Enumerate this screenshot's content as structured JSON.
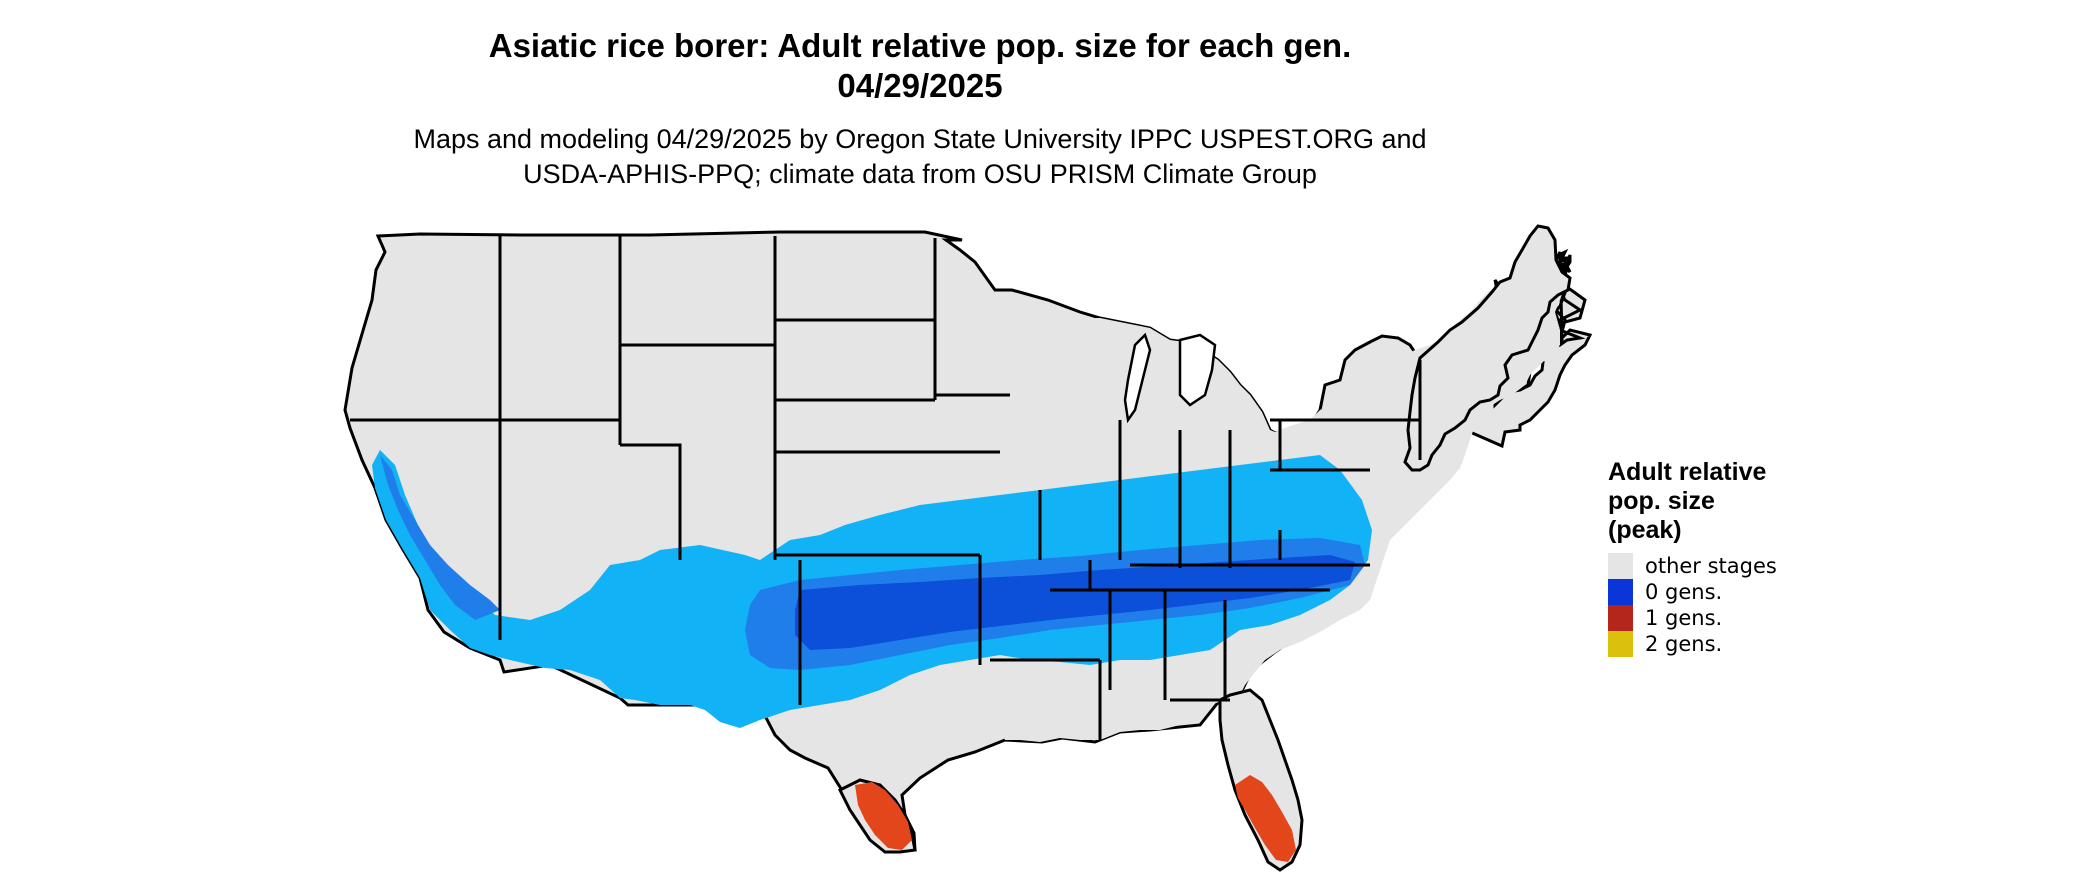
{
  "header": {
    "title_line1": "Asiatic rice borer: Adult relative pop. size for each gen.",
    "title_line2": "04/29/2025",
    "subtitle_line1": "Maps and modeling 04/29/2025 by Oregon State University IPPC USPEST.ORG and",
    "subtitle_line2": "USDA-APHIS-PPQ; climate data from OSU PRISM Climate Group"
  },
  "legend": {
    "title_line1": "Adult relative",
    "title_line2": "pop. size",
    "title_line3": "(peak)",
    "items": [
      {
        "label": "other stages",
        "color": "#e5e5e5"
      },
      {
        "label": "0 gens.",
        "color": "#0a35d8"
      },
      {
        "label": "1 gens.",
        "color": "#b4261c"
      },
      {
        "label": "2 gens.",
        "color": "#dcc10c"
      }
    ]
  },
  "map_colors": {
    "land": "#e5e5e5",
    "border": "#000000",
    "light_blue": "#11b2f6",
    "mid_blue": "#1f7ee9",
    "dark_blue": "#0c4fd8",
    "red_orange": "#e4461b"
  }
}
